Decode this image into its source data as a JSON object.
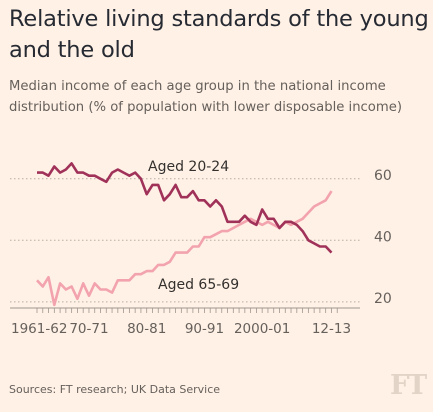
{
  "header": {
    "title": "Relative living standards of the young and the old",
    "subtitle": "Median income of each age group in the national income distribution (% of population with lower disposable income)"
  },
  "footer": {
    "source": "Sources: FT research; UK Data Service",
    "logo": "FT"
  },
  "colors": {
    "background": "#fff1e5",
    "young": "#a0325a",
    "old": "#f2a3ad",
    "grid": "#b7aea5",
    "text": "#66605c"
  },
  "chart_data": {
    "type": "line",
    "title": "",
    "xlabel": "",
    "ylabel": "",
    "ylim": [
      18,
      70
    ],
    "xlim": [
      1961,
      2014
    ],
    "y_ticks": [
      20,
      40,
      60
    ],
    "y_axis_side": "right",
    "x_tick_labels": [
      {
        "label": "1961-62",
        "x": 1961
      },
      {
        "label": "70-71",
        "x": 1970
      },
      {
        "label": "80-81",
        "x": 1980
      },
      {
        "label": "90-91",
        "x": 1990
      },
      {
        "label": "2000-01",
        "x": 2000
      },
      {
        "label": "12-13",
        "x": 2012
      }
    ],
    "grid": "horizontal dotted",
    "series": [
      {
        "name": "Aged 20-24",
        "x": [
          1961,
          1962,
          1963,
          1964,
          1965,
          1966,
          1967,
          1968,
          1969,
          1970,
          1971,
          1972,
          1973,
          1974,
          1975,
          1976,
          1977,
          1978,
          1979,
          1980,
          1981,
          1982,
          1983,
          1984,
          1985,
          1986,
          1987,
          1988,
          1989,
          1990,
          1991,
          1992,
          1993,
          1994,
          1995,
          1996,
          1997,
          1998,
          1999,
          2000,
          2001,
          2002,
          2003,
          2004,
          2005,
          2006,
          2007,
          2008,
          2009,
          2010,
          2011,
          2012
        ],
        "values": [
          62,
          62,
          61,
          64,
          62,
          63,
          65,
          62,
          62,
          61,
          61,
          60,
          59,
          62,
          63,
          62,
          61,
          62,
          60,
          55,
          58,
          58,
          53,
          55,
          58,
          54,
          54,
          56,
          53,
          53,
          51,
          53,
          51,
          46,
          46,
          46,
          48,
          46,
          45,
          50,
          47,
          47,
          44,
          46,
          46,
          45,
          43,
          40,
          39,
          38,
          38,
          36
        ]
      },
      {
        "name": "Aged 65-69",
        "x": [
          1961,
          1962,
          1963,
          1964,
          1965,
          1966,
          1967,
          1968,
          1969,
          1970,
          1971,
          1972,
          1973,
          1974,
          1975,
          1976,
          1977,
          1978,
          1979,
          1980,
          1981,
          1982,
          1983,
          1984,
          1985,
          1986,
          1987,
          1988,
          1989,
          1990,
          1991,
          1992,
          1993,
          1994,
          1995,
          1996,
          1997,
          1998,
          1999,
          2000,
          2001,
          2002,
          2003,
          2004,
          2005,
          2006,
          2007,
          2008,
          2009,
          2010,
          2011,
          2012
        ],
        "values": [
          27,
          25,
          28,
          19,
          26,
          24,
          25,
          21,
          26,
          22,
          26,
          24,
          24,
          23,
          27,
          27,
          27,
          29,
          29,
          30,
          30,
          32,
          32,
          33,
          36,
          36,
          36,
          38,
          38,
          41,
          41,
          42,
          43,
          43,
          44,
          45,
          46,
          47,
          46,
          45,
          46,
          45,
          44,
          46,
          45,
          46,
          47,
          49,
          51,
          52,
          53,
          56
        ]
      }
    ],
    "annotations": [
      {
        "text": "Aged 20-24",
        "series": "Aged 20-24"
      },
      {
        "text": "Aged 65-69",
        "series": "Aged 65-69"
      }
    ]
  }
}
